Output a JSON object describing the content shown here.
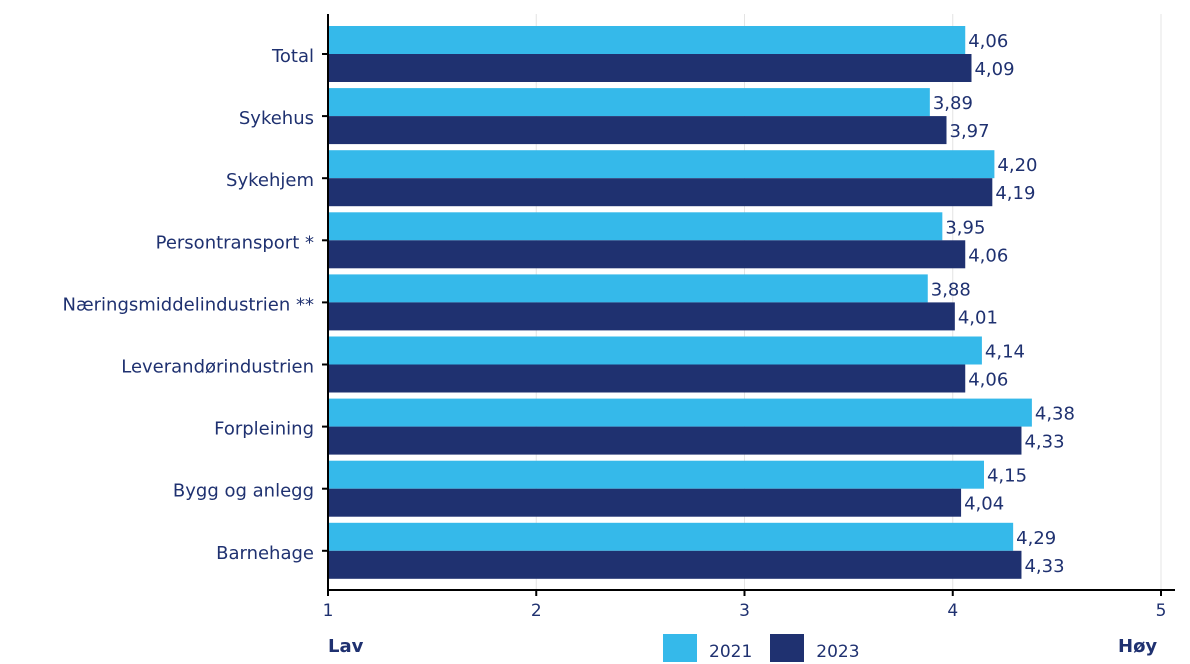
{
  "chart_data": {
    "type": "bar",
    "orientation": "horizontal",
    "categories": [
      "Total",
      "Sykehus",
      "Sykehjem",
      "Persontransport *",
      "Næringsmiddelindustrien **",
      "Leverandørindustrien",
      "Forpleining",
      "Bygg og anlegg",
      "Barnehage"
    ],
    "series": [
      {
        "name": "2021",
        "color": "#35b9ea",
        "values": [
          4.06,
          3.89,
          4.2,
          3.95,
          3.88,
          4.14,
          4.38,
          4.15,
          4.29
        ],
        "labels": [
          "4,06",
          "3,89",
          "4,20",
          "3,95",
          "3,88",
          "4,14",
          "4,38",
          "4,15",
          "4,29"
        ]
      },
      {
        "name": "2023",
        "color": "#1f3170",
        "values": [
          4.09,
          3.97,
          4.19,
          4.06,
          4.01,
          4.06,
          4.33,
          4.04,
          4.33
        ],
        "labels": [
          "4,09",
          "3,97",
          "4,19",
          "4,06",
          "4,01",
          "4,06",
          "4,33",
          "4,04",
          "4,33"
        ]
      }
    ],
    "xlim": [
      1,
      5.1
    ],
    "xticks": [
      1,
      2,
      3,
      4,
      5
    ],
    "xtick_labels": [
      "1",
      "2",
      "3",
      "4",
      "5"
    ],
    "grid": true,
    "legend_position": "bottom-center",
    "low_label": "Lav",
    "high_label": "Høy"
  }
}
